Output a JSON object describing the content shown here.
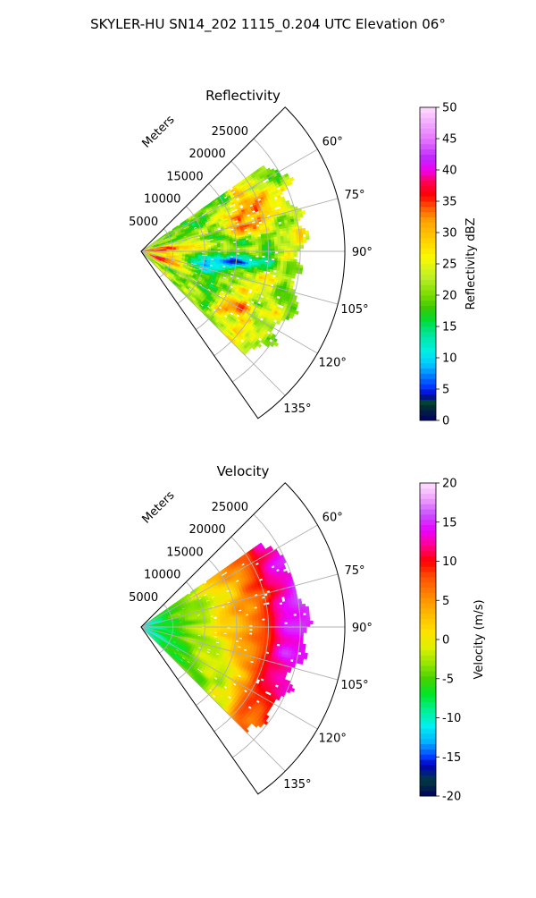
{
  "figure": {
    "suptitle": "SKYLER-HU  SN14_202  1115_0.204 UTC Elevation 06°"
  },
  "chart_data": [
    {
      "type": "heatmap",
      "title": "Reflectivity",
      "radial_axis_label": "Meters",
      "radial_ticks": [
        5000,
        10000,
        15000,
        20000,
        25000
      ],
      "radial_tick_labels": [
        "5000",
        "10000",
        "15000",
        "20000",
        "25000"
      ],
      "r_range": [
        0,
        32000
      ],
      "azimuth_range_deg": [
        45,
        145
      ],
      "azimuth_ticks_deg": [
        60,
        75,
        90,
        105,
        120,
        135
      ],
      "azimuth_tick_labels": [
        "60°",
        "75°",
        "90°",
        "105°",
        "120°",
        "135°"
      ],
      "data_azimuth_extent_deg": [
        55,
        135
      ],
      "data_range_extent": [
        0,
        27000
      ],
      "colorbar": {
        "label": "Reflectivity dBZ",
        "range": [
          0,
          50
        ],
        "ticks": [
          0,
          5,
          10,
          15,
          20,
          25,
          30,
          35,
          40,
          45,
          50
        ],
        "tick_labels": [
          "0",
          "5",
          "10",
          "15",
          "20",
          "25",
          "30",
          "35",
          "40",
          "45",
          "50"
        ]
      },
      "features": [
        {
          "az": 100,
          "r": 11000,
          "value": 12
        },
        {
          "az": 95,
          "r": 15000,
          "value": 14
        },
        {
          "az": 70,
          "r": 17000,
          "value": 33
        },
        {
          "az": 85,
          "r": 2500,
          "value": 38
        },
        {
          "az": 110,
          "r": 3500,
          "value": 35
        },
        {
          "az": 120,
          "r": 18000,
          "value": 30
        }
      ],
      "grid": true
    },
    {
      "type": "heatmap",
      "title": "Velocity",
      "radial_axis_label": "Meters",
      "radial_ticks": [
        5000,
        10000,
        15000,
        20000,
        25000
      ],
      "radial_tick_labels": [
        "5000",
        "10000",
        "15000",
        "20000",
        "25000"
      ],
      "r_range": [
        0,
        32000
      ],
      "azimuth_range_deg": [
        45,
        145
      ],
      "azimuth_ticks_deg": [
        60,
        75,
        90,
        105,
        120,
        135
      ],
      "azimuth_tick_labels": [
        "60°",
        "75°",
        "90°",
        "105°",
        "120°",
        "135°"
      ],
      "data_azimuth_extent_deg": [
        55,
        135
      ],
      "data_range_extent": [
        0,
        27000
      ],
      "colorbar": {
        "label": "Velocity (m/s)",
        "range": [
          -20,
          20
        ],
        "ticks": [
          -20,
          -15,
          -10,
          -5,
          0,
          5,
          10,
          15,
          20
        ],
        "tick_labels": [
          "-20",
          "-15",
          "-10",
          "-5",
          "0",
          "5",
          "10",
          "15",
          "20"
        ]
      },
      "velocity_profile_by_range": [
        {
          "r": 0,
          "value": -11
        },
        {
          "r": 4000,
          "value": -7
        },
        {
          "r": 9000,
          "value": -2
        },
        {
          "r": 14000,
          "value": 2
        },
        {
          "r": 18000,
          "value": 7
        },
        {
          "r": 21000,
          "value": 12
        },
        {
          "r": 25000,
          "value": 15
        }
      ],
      "grid": true
    }
  ]
}
